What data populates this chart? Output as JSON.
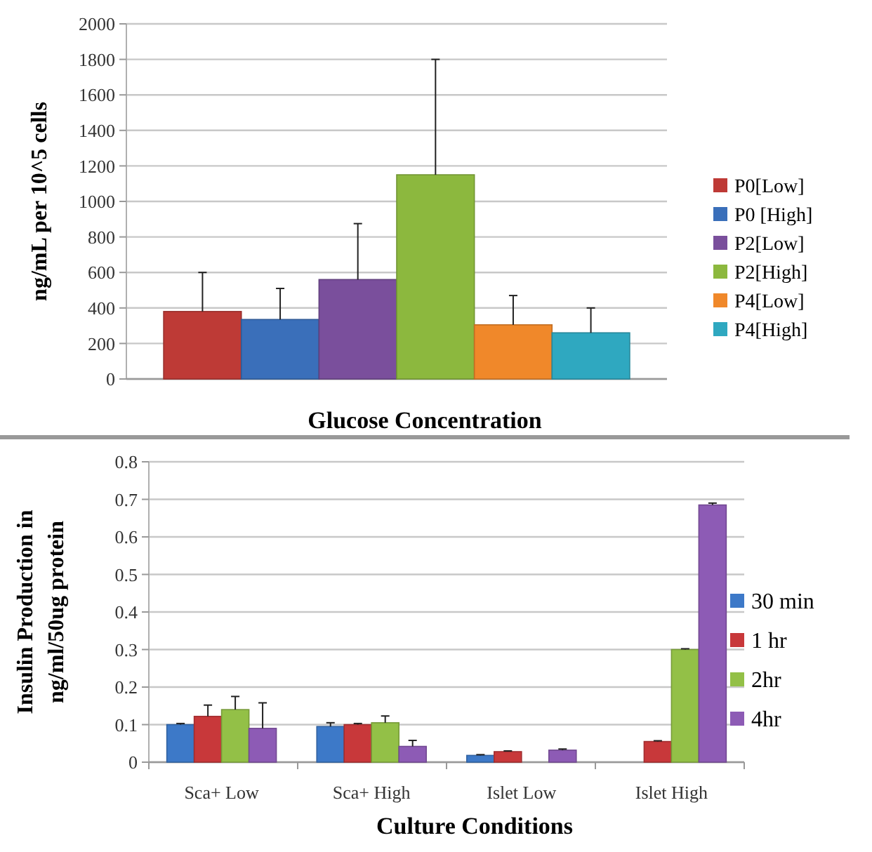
{
  "chart_data": [
    {
      "type": "bar",
      "xlabel": "Glucose Concentration",
      "ylabel": "ng/mL per 10^5 cells",
      "categories": [
        null
      ],
      "ylim": [
        0,
        2000
      ],
      "yticks": [
        0,
        200,
        400,
        600,
        800,
        1000,
        1200,
        1400,
        1600,
        1800,
        2000
      ],
      "grid": "y",
      "legend": "right",
      "series": [
        {
          "name": "P0[Low]",
          "color": "#be3a36",
          "values": [
            380
          ],
          "errors": [
            [
              380,
              600
            ]
          ]
        },
        {
          "name": "P0 [High]",
          "color": "#3a6fba",
          "values": [
            335
          ],
          "errors": [
            [
              335,
              510
            ]
          ]
        },
        {
          "name": "P2[Low]",
          "color": "#7a4f9c",
          "values": [
            560
          ],
          "errors": [
            [
              560,
              875
            ]
          ]
        },
        {
          "name": "P2[High]",
          "color": "#8cb83e",
          "values": [
            1150
          ],
          "errors": [
            [
              1150,
              1800
            ]
          ]
        },
        {
          "name": "P4[Low]",
          "color": "#f0882a",
          "values": [
            305
          ],
          "errors": [
            [
              305,
              470
            ]
          ]
        },
        {
          "name": "P4[High]",
          "color": "#2fa8c0",
          "values": [
            260
          ],
          "errors": [
            [
              260,
              400
            ]
          ]
        }
      ]
    },
    {
      "type": "bar",
      "xlabel": "Culture Conditions",
      "ylabel": "Insulin Production in\nng/ml/50ug protein",
      "categories": [
        "Sca+ Low",
        "Sca+ High",
        "Islet Low",
        "Islet High"
      ],
      "ylim": [
        0,
        0.8
      ],
      "yticks": [
        {
          "value": 0,
          "label": "0"
        },
        0.1,
        0.2,
        0.3,
        0.4,
        0.5,
        0.6,
        0.7,
        0.8
      ],
      "grid": "y",
      "legend": "right",
      "series": [
        {
          "name": "30 min",
          "color": "#3d79c8",
          "values": [
            0.1,
            0.095,
            0.018,
            null
          ],
          "errors": [
            [
              0.1,
              0.103
            ],
            [
              0.095,
              0.105
            ],
            [
              0.018,
              0.02
            ],
            null
          ]
        },
        {
          "name": "1 hr",
          "color": "#c8383a",
          "values": [
            0.122,
            0.1,
            0.028,
            0.055
          ],
          "errors": [
            [
              0.122,
              0.152
            ],
            [
              0.1,
              0.103
            ],
            [
              0.028,
              0.03
            ],
            [
              0.055,
              0.057
            ]
          ]
        },
        {
          "name": "2hr",
          "color": "#93c047",
          "values": [
            0.14,
            0.105,
            null,
            0.3
          ],
          "errors": [
            [
              0.14,
              0.175
            ],
            [
              0.105,
              0.123
            ],
            null,
            [
              0.3,
              0.302
            ]
          ]
        },
        {
          "name": "4hr",
          "color": "#8d5bb5",
          "values": [
            0.09,
            0.042,
            0.032,
            0.685
          ],
          "errors": [
            [
              0.09,
              0.158
            ],
            [
              0.042,
              0.058
            ],
            [
              0.032,
              0.035
            ],
            [
              0.685,
              0.69
            ]
          ]
        }
      ]
    }
  ]
}
